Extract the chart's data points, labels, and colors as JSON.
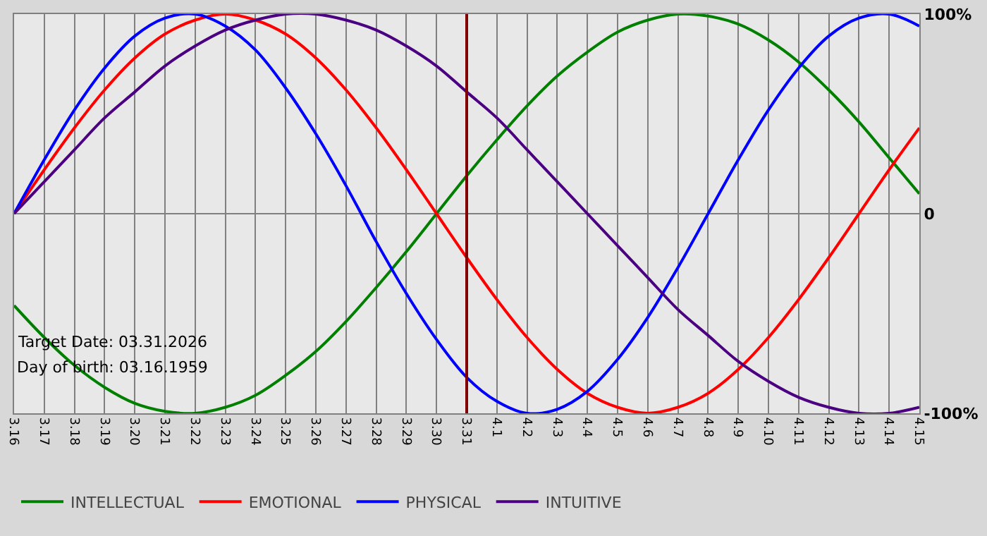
{
  "chart_data": {
    "type": "line",
    "categories": [
      "3.16",
      "3.17",
      "3.18",
      "3.19",
      "3.20",
      "3.21",
      "3.22",
      "3.23",
      "3.24",
      "3.25",
      "3.26",
      "3.27",
      "3.28",
      "3.29",
      "3.30",
      "3.31",
      "4.1",
      "4.2",
      "4.3",
      "4.4",
      "4.5",
      "4.6",
      "4.7",
      "4.8",
      "4.9",
      "4.10",
      "4.11",
      "4.12",
      "4.13",
      "4.14",
      "4.15"
    ],
    "series": [
      {
        "name": "INTELLECTUAL",
        "color": "#007f00",
        "values": [
          -46,
          -62,
          -76,
          -87,
          -95,
          -99,
          -100,
          -97,
          -91,
          -81,
          -69,
          -54,
          -37,
          -19,
          0,
          19,
          37,
          54,
          69,
          81,
          91,
          97,
          100,
          99,
          95,
          87,
          76,
          62,
          46,
          28,
          10
        ]
      },
      {
        "name": "EMOTIONAL",
        "color": "#ff0000",
        "values": [
          0,
          22,
          43,
          62,
          78,
          90,
          97,
          100,
          97,
          90,
          78,
          62,
          43,
          22,
          0,
          -22,
          -43,
          -62,
          -78,
          -90,
          -97,
          -100,
          -97,
          -90,
          -78,
          -62,
          -43,
          -22,
          0,
          22,
          43
        ]
      },
      {
        "name": "PHYSICAL",
        "color": "#0000ff",
        "values": [
          0,
          27,
          52,
          73,
          89,
          98,
          100,
          94,
          82,
          63,
          40,
          14,
          -14,
          -40,
          -63,
          -82,
          -94,
          -100,
          -98,
          -89,
          -73,
          -52,
          -27,
          0,
          27,
          52,
          73,
          89,
          98,
          100,
          94
        ]
      },
      {
        "name": "INTUITIVE",
        "color": "#4b0082",
        "values": [
          0,
          16,
          32,
          48,
          61,
          74,
          84,
          92,
          97,
          100,
          100,
          97,
          92,
          84,
          74,
          61,
          48,
          32,
          16,
          0,
          -16,
          -32,
          -48,
          -61,
          -74,
          -84,
          -92,
          -97,
          -100,
          -100,
          -97
        ]
      }
    ],
    "ylim": [
      -100,
      100
    ],
    "yticks": [
      {
        "value": 100,
        "label": "100%"
      },
      0,
      {
        "value": -100,
        "label": "-100%"
      }
    ],
    "ref_lines": [
      {
        "axis": "x",
        "value": "3.31",
        "label": null,
        "color": "#800000"
      }
    ],
    "annotations": [
      "Target Date: 03.31.2026",
      "Day of birth: 03.16.1959"
    ],
    "grid": true,
    "legend": "bottom left",
    "marker": "none",
    "line_style": "solid"
  }
}
